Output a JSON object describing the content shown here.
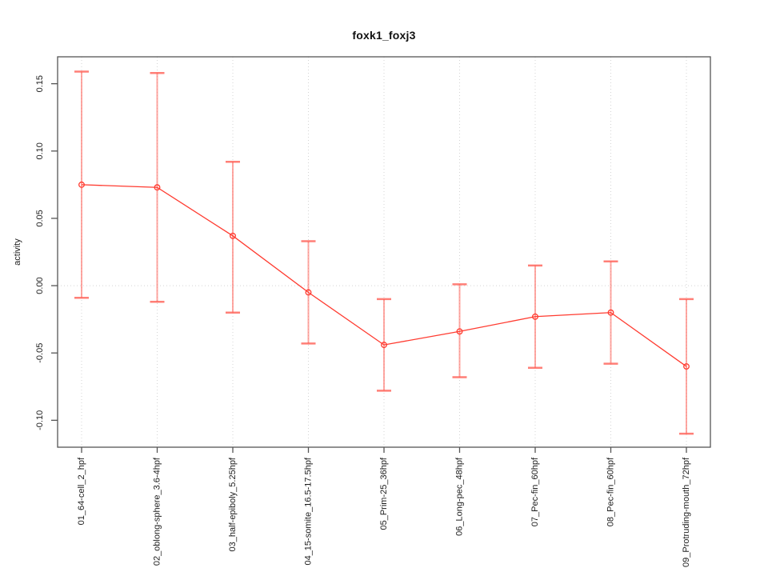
{
  "chart_data": {
    "type": "line",
    "title": "foxk1_foxj3",
    "xlabel": "",
    "ylabel": "activity",
    "categories": [
      "01_64-cell_2_hpf",
      "02_oblong-sphere_3.6-4hpf",
      "03_half-epiboly_5.25hpf",
      "04_15-somite_16.5-17.5hpf",
      "05_Prim-25_36hpf",
      "06_Long-pec_48hpf",
      "07_Pec-fin_60hpf",
      "08_Pec-fin_60hpf",
      "09_Protruding-mouth_72hpf"
    ],
    "series": [
      {
        "name": "activity",
        "values": [
          0.075,
          0.073,
          0.037,
          -0.005,
          -0.044,
          -0.034,
          -0.023,
          -0.02,
          -0.06
        ]
      }
    ],
    "error_bars": {
      "upper": [
        0.159,
        0.158,
        0.092,
        0.033,
        -0.01,
        0.001,
        0.015,
        0.018,
        -0.01
      ],
      "lower": [
        -0.009,
        -0.012,
        -0.02,
        -0.043,
        -0.078,
        -0.068,
        -0.061,
        -0.058,
        -0.11
      ]
    },
    "yticks": [
      -0.1,
      -0.05,
      0.0,
      0.05,
      0.1,
      0.15
    ],
    "ytick_labels": [
      "-0.10",
      "-0.05",
      "0.00",
      "0.05",
      "0.10",
      "0.15"
    ],
    "ylim": [
      -0.12,
      0.17
    ],
    "grid": "dotted vertical line at each category and dotted horizontal line at y=0",
    "legend": "none",
    "marker": "open-circle",
    "colors": {
      "line": "#ff3b30",
      "error_bar": "rgba(255,95,85,0.55)",
      "error_bar_cap": "rgba(255,95,85,0.80)",
      "grid": "#d4d4d4",
      "frame": "#555555",
      "text": "#1c1c1c",
      "background": "#ffffff"
    }
  }
}
